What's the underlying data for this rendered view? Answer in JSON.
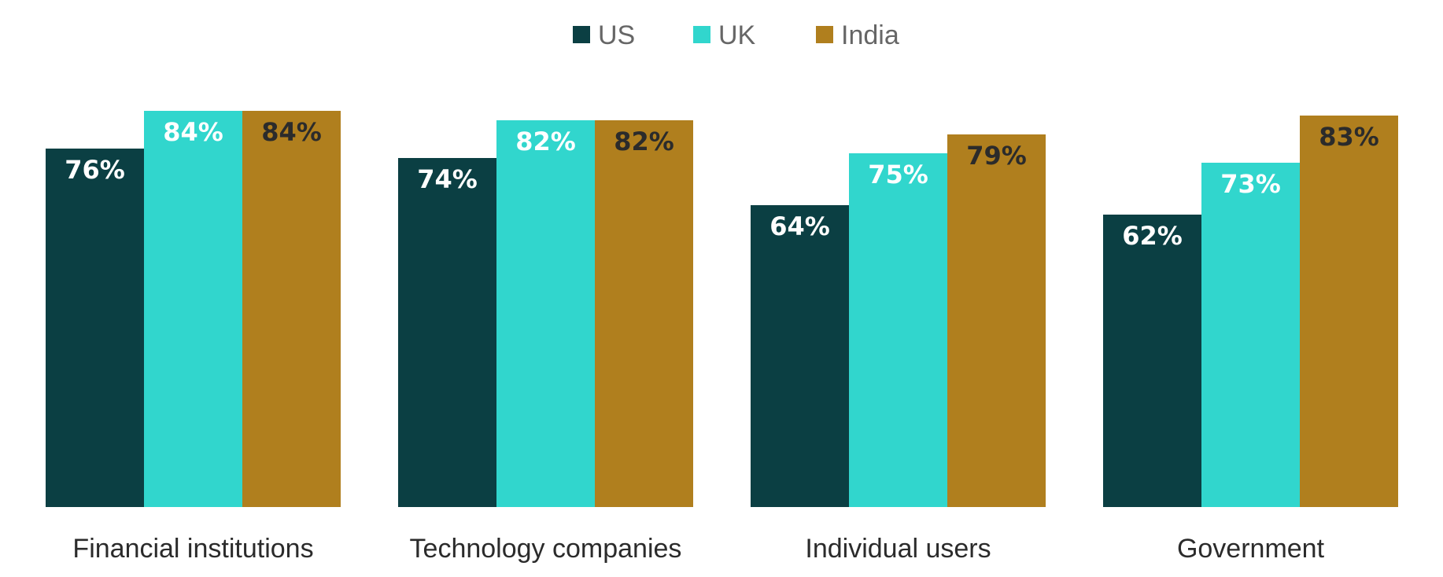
{
  "chart_data": {
    "type": "bar",
    "categories": [
      "Financial institutions",
      "Technology companies",
      "Individual users",
      "Government"
    ],
    "series": [
      {
        "name": "US",
        "values": [
          76,
          74,
          64,
          62
        ],
        "color": "#0b3f43",
        "label_color": "#ffffff"
      },
      {
        "name": "UK",
        "values": [
          84,
          82,
          75,
          73
        ],
        "color": "#31d6cd",
        "label_color": "#ffffff"
      },
      {
        "name": "India",
        "values": [
          84,
          82,
          79,
          83
        ],
        "color": "#b07f1e",
        "label_color": "#2b2b2b"
      }
    ],
    "value_suffix": "%",
    "title": "",
    "xlabel": "",
    "ylabel": "",
    "ylim": [
      0,
      100
    ],
    "grid": false,
    "legend_position": "top-center",
    "show_data_labels": true
  }
}
